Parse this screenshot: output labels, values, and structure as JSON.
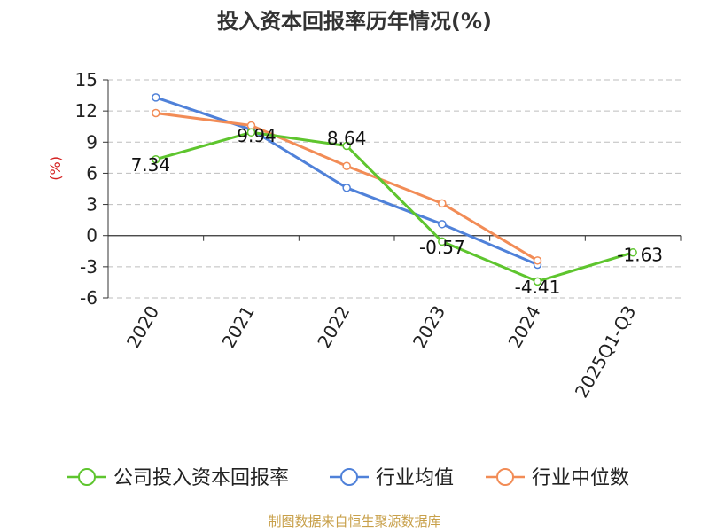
{
  "chart_data": {
    "type": "line",
    "title": "投入资本回报率历年情况(%)",
    "ylabel": "(%)",
    "xlabel": "",
    "categories": [
      "2020",
      "2021",
      "2022",
      "2023",
      "2024",
      "2025Q1-Q3"
    ],
    "y_ticks": [
      15,
      12,
      9,
      6,
      3,
      0,
      -3,
      -6
    ],
    "ylim": [
      -6,
      15
    ],
    "grid": "horizontal-dashed",
    "legend_position": "bottom",
    "series": [
      {
        "name": "公司投入资本回报率",
        "color": "#5ec52e",
        "values": [
          7.34,
          9.94,
          8.64,
          -0.57,
          -4.41,
          -1.63
        ],
        "labels": [
          "7.34",
          "9.94",
          "8.64",
          "-0.57",
          "-4.41",
          "-1.63"
        ]
      },
      {
        "name": "行业均值",
        "color": "#4f81d9",
        "values": [
          13.3,
          10.2,
          4.6,
          1.1,
          -2.8,
          null
        ]
      },
      {
        "name": "行业中位数",
        "color": "#f28c56",
        "values": [
          11.8,
          10.6,
          6.7,
          3.1,
          -2.4,
          null
        ]
      }
    ]
  },
  "source": "制图数据来自恒生聚源数据库"
}
